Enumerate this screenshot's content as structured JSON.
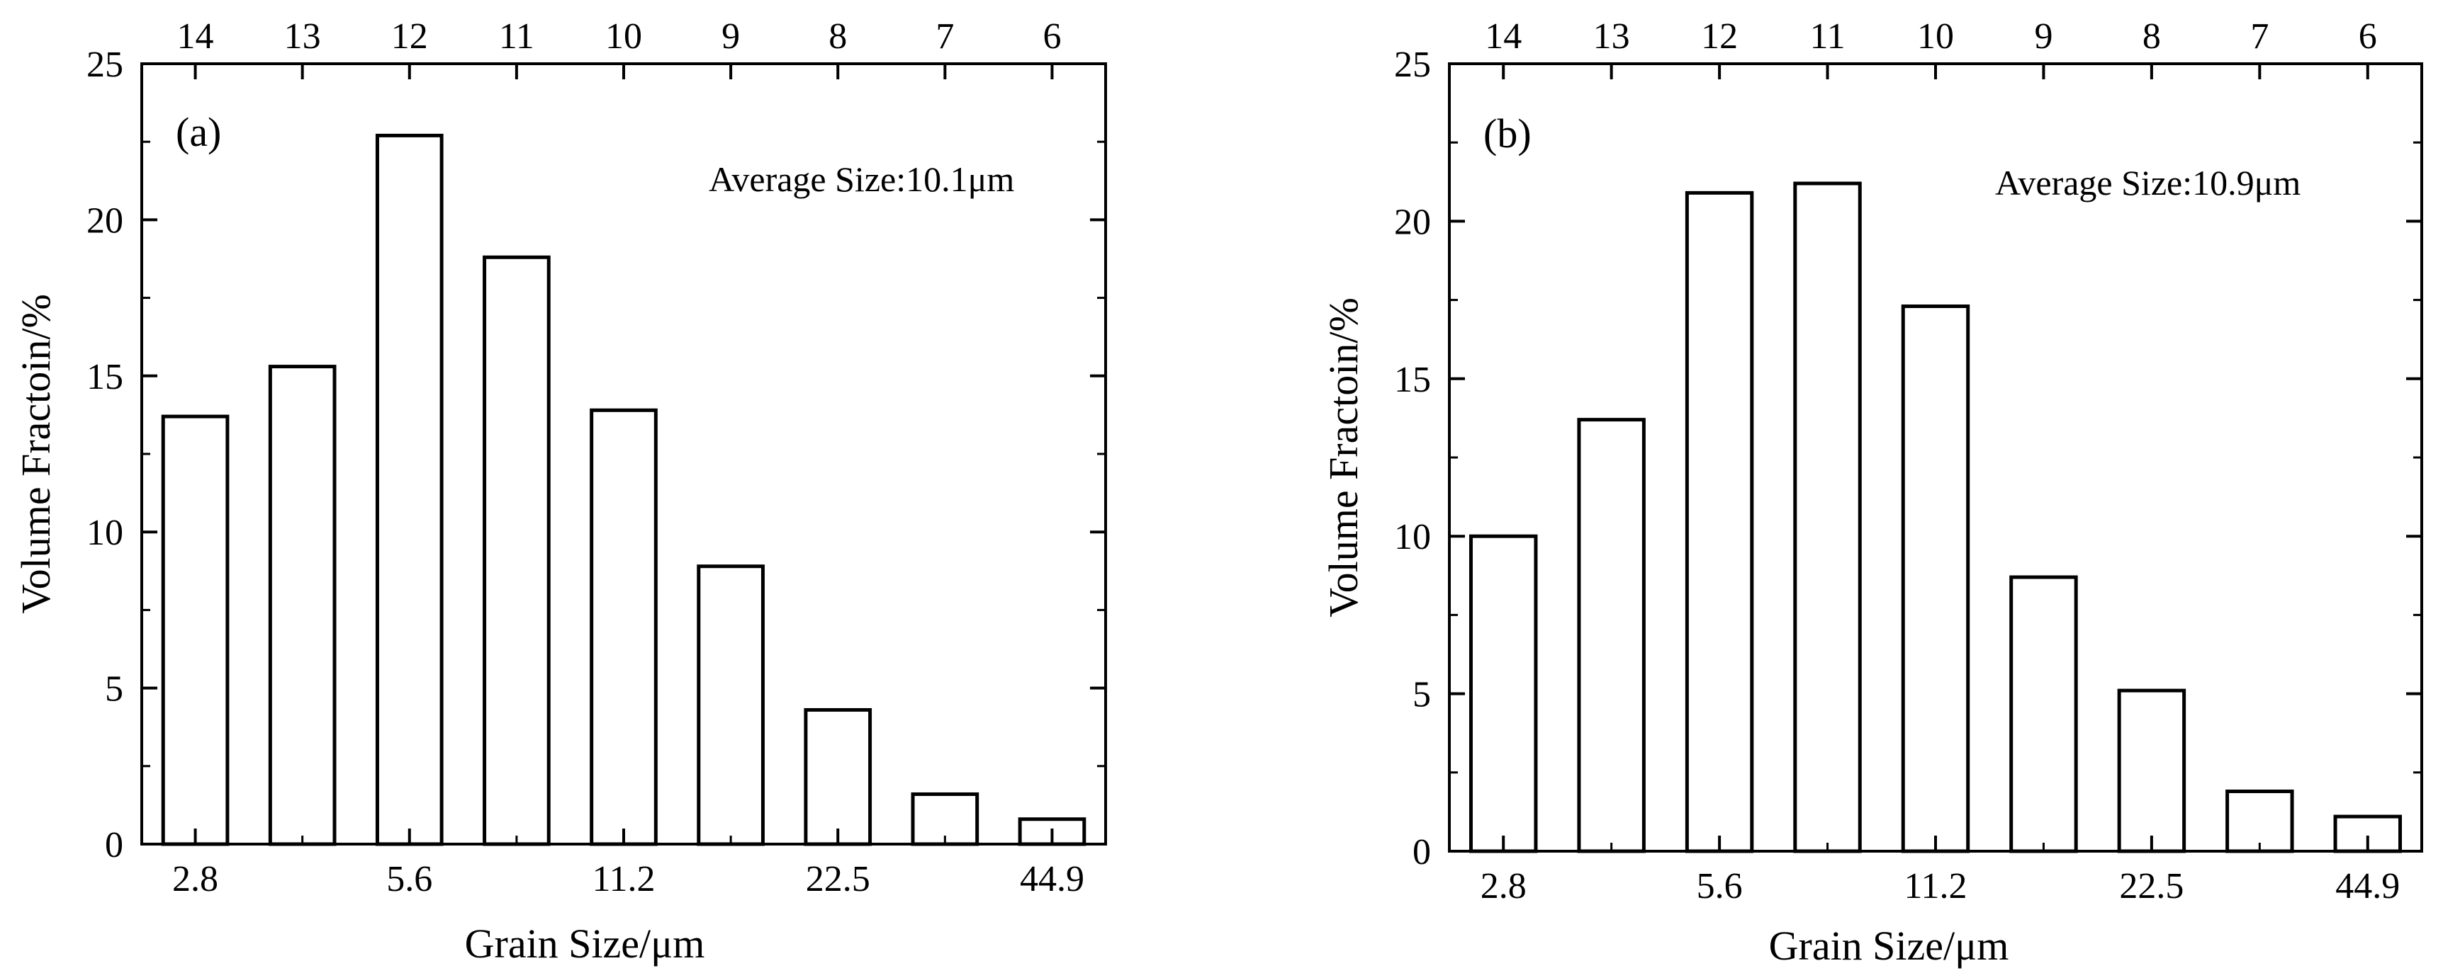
{
  "chart_data": [
    {
      "type": "bar",
      "panel_label": "(a)",
      "annotation": "Average Size:10.1μm",
      "xlabel": "Grain Size/μm",
      "ylabel": "Volume Fractoin/%",
      "bottom_tick_labels": [
        "2.8",
        "5.6",
        "11.2",
        "22.5",
        "44.9"
      ],
      "top_tick_labels": [
        "14",
        "13",
        "12",
        "11",
        "10",
        "9",
        "8",
        "7",
        "6"
      ],
      "y_ticks": [
        "0",
        "5",
        "10",
        "15",
        "20",
        "25"
      ],
      "ylim": [
        0,
        25
      ],
      "categories": [
        "14",
        "13",
        "12",
        "11",
        "10",
        "9",
        "8",
        "7",
        "6"
      ],
      "values": [
        13.7,
        15.3,
        22.7,
        18.8,
        13.9,
        8.9,
        4.3,
        1.6,
        0.8
      ]
    },
    {
      "type": "bar",
      "panel_label": "(b)",
      "annotation": "Average Size:10.9μm",
      "xlabel": "Grain Size/μm",
      "ylabel": "Volume Fractoin/%",
      "bottom_tick_labels": [
        "2.8",
        "5.6",
        "11.2",
        "22.5",
        "44.9"
      ],
      "top_tick_labels": [
        "14",
        "13",
        "12",
        "11",
        "10",
        "9",
        "8",
        "7",
        "6"
      ],
      "y_ticks": [
        "0",
        "5",
        "10",
        "15",
        "20",
        "25"
      ],
      "ylim": [
        0,
        25
      ],
      "categories": [
        "14",
        "13",
        "12",
        "11",
        "10",
        "9",
        "8",
        "7",
        "6"
      ],
      "values": [
        10.0,
        13.7,
        20.9,
        21.2,
        17.3,
        8.7,
        5.1,
        1.9,
        1.1
      ]
    }
  ]
}
